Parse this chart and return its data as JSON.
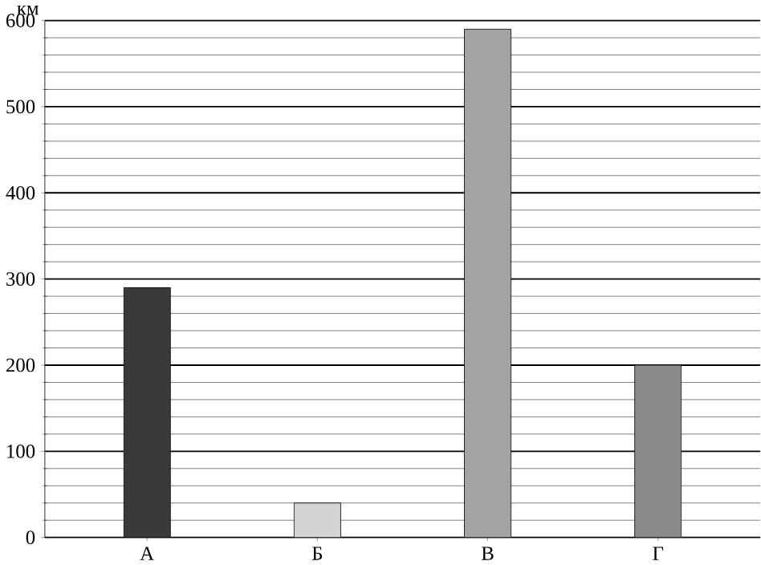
{
  "chart_data": {
    "type": "bar",
    "ylabel": "км",
    "categories": [
      "А",
      "Б",
      "В",
      "Г"
    ],
    "values": [
      290,
      40,
      590,
      200
    ],
    "colors": [
      "#3a3a3a",
      "#d4d4d4",
      "#a3a3a3",
      "#8a8a8a"
    ],
    "ylim": [
      0,
      600
    ],
    "yticks": [
      0,
      100,
      200,
      300,
      400,
      500,
      600
    ],
    "grid": "y"
  }
}
